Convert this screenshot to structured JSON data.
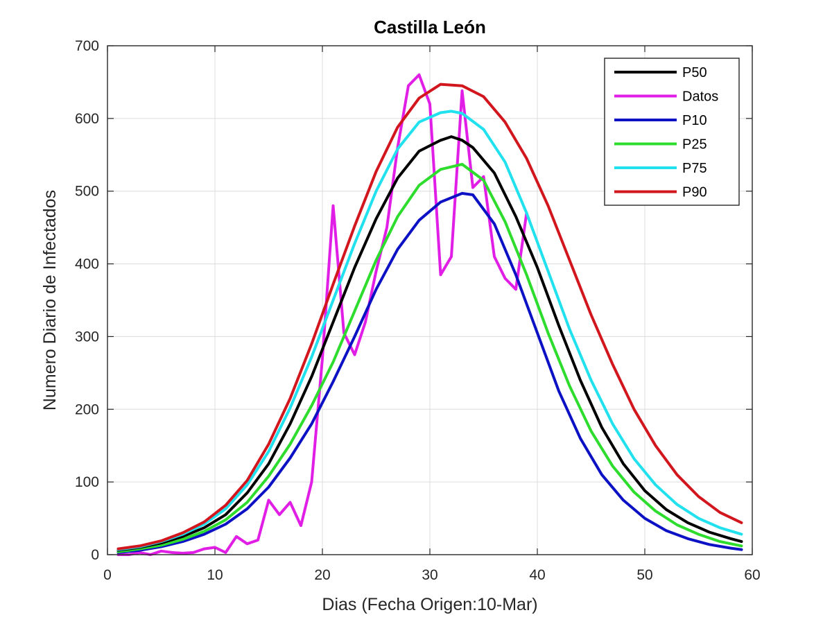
{
  "chart_data": {
    "type": "line",
    "title": "Castilla León",
    "xlabel": "Dias (Fecha Origen:10-Mar)",
    "ylabel": "Numero Diario de Infectados",
    "xlim": [
      0,
      60
    ],
    "ylim": [
      0,
      700
    ],
    "xticks": [
      "0",
      "10",
      "20",
      "30",
      "40",
      "50",
      "60"
    ],
    "yticks": [
      "0",
      "100",
      "200",
      "300",
      "400",
      "500",
      "600",
      "700"
    ],
    "grid": true,
    "legend_position": "top-right",
    "series": [
      {
        "name": "P50",
        "legend_label": "P50",
        "color": "#000000",
        "x": [
          1,
          3,
          5,
          7,
          9,
          11,
          13,
          15,
          17,
          19,
          21,
          23,
          25,
          27,
          29,
          31,
          32,
          33,
          34,
          36,
          38,
          40,
          42,
          44,
          46,
          48,
          50,
          52,
          54,
          56,
          58,
          59
        ],
        "y": [
          6,
          10,
          16,
          25,
          37,
          55,
          85,
          125,
          180,
          245,
          320,
          395,
          462,
          518,
          555,
          570,
          575,
          570,
          560,
          525,
          465,
          395,
          315,
          240,
          175,
          125,
          88,
          62,
          44,
          31,
          22,
          18
        ]
      },
      {
        "name": "Datos",
        "legend_label": " Datos",
        "color": "#e11ee6",
        "x": [
          1,
          2,
          3,
          4,
          5,
          6,
          7,
          8,
          9,
          10,
          11,
          12,
          13,
          14,
          15,
          16,
          17,
          18,
          19,
          20,
          21,
          22,
          23,
          24,
          25,
          26,
          27,
          28,
          29,
          30,
          31,
          32,
          33,
          34,
          35,
          36,
          37,
          38,
          39
        ],
        "y": [
          0,
          0,
          3,
          0,
          5,
          3,
          2,
          3,
          8,
          10,
          3,
          25,
          15,
          20,
          75,
          55,
          72,
          40,
          100,
          270,
          480,
          305,
          275,
          320,
          390,
          450,
          560,
          645,
          660,
          620,
          385,
          410,
          638,
          505,
          520,
          410,
          380,
          365,
          470
        ]
      },
      {
        "name": "P10",
        "legend_label": "P10",
        "color": "#0c11c4",
        "x": [
          1,
          3,
          5,
          7,
          9,
          11,
          13,
          15,
          17,
          19,
          21,
          23,
          25,
          27,
          29,
          31,
          33,
          34,
          36,
          38,
          40,
          42,
          44,
          46,
          48,
          50,
          52,
          54,
          56,
          58,
          59
        ],
        "y": [
          3,
          6,
          11,
          18,
          28,
          42,
          63,
          93,
          133,
          180,
          238,
          300,
          365,
          420,
          460,
          485,
          497,
          495,
          455,
          385,
          305,
          225,
          160,
          110,
          75,
          50,
          33,
          22,
          14,
          9,
          7
        ]
      },
      {
        "name": "P25",
        "legend_label": "P25",
        "color": "#2ddc2d",
        "x": [
          1,
          3,
          5,
          7,
          9,
          11,
          13,
          15,
          17,
          19,
          21,
          23,
          25,
          27,
          29,
          31,
          33,
          35,
          37,
          39,
          41,
          43,
          45,
          47,
          49,
          51,
          53,
          55,
          57,
          59
        ],
        "y": [
          4,
          8,
          13,
          21,
          32,
          48,
          72,
          108,
          152,
          205,
          265,
          335,
          405,
          465,
          508,
          530,
          537,
          515,
          458,
          385,
          305,
          232,
          170,
          122,
          86,
          60,
          41,
          28,
          18,
          12
        ]
      },
      {
        "name": "P75",
        "legend_label": "P75",
        "color": "#22e1ee",
        "x": [
          1,
          3,
          5,
          7,
          9,
          11,
          13,
          15,
          17,
          19,
          21,
          23,
          25,
          27,
          29,
          31,
          32,
          33,
          35,
          37,
          39,
          41,
          43,
          45,
          47,
          49,
          51,
          53,
          55,
          57,
          59
        ],
        "y": [
          7,
          11,
          18,
          28,
          42,
          63,
          96,
          142,
          202,
          272,
          350,
          428,
          500,
          558,
          595,
          608,
          610,
          607,
          585,
          540,
          470,
          390,
          310,
          240,
          180,
          132,
          96,
          69,
          50,
          37,
          28
        ]
      },
      {
        "name": "P90",
        "legend_label": "P90",
        "color": "#d2161d",
        "x": [
          1,
          3,
          5,
          7,
          9,
          11,
          13,
          15,
          17,
          19,
          21,
          23,
          25,
          27,
          29,
          31,
          33,
          35,
          37,
          39,
          41,
          43,
          45,
          47,
          49,
          51,
          53,
          55,
          57,
          59
        ],
        "y": [
          8,
          12,
          19,
          30,
          45,
          68,
          102,
          152,
          215,
          290,
          372,
          452,
          527,
          588,
          628,
          647,
          645,
          630,
          595,
          545,
          480,
          405,
          330,
          262,
          200,
          150,
          110,
          80,
          58,
          44
        ]
      }
    ]
  }
}
